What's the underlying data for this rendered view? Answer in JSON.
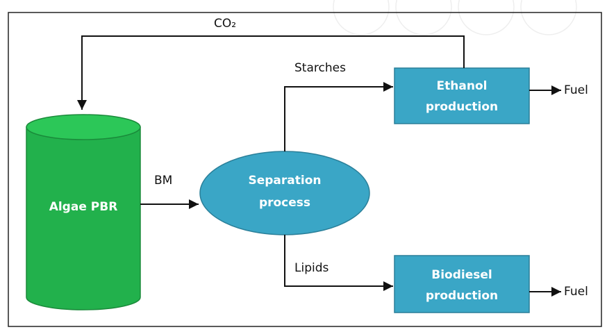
{
  "nodes": [
    {
      "label": [
        "Algae PBR"
      ]
    },
    {
      "label": [
        "Separation",
        "process"
      ]
    },
    {
      "label": [
        "Ethanol",
        "production"
      ]
    },
    {
      "label": [
        "Biodiesel",
        "production"
      ]
    }
  ],
  "edges": [
    {
      "label": "CO₂"
    },
    {
      "label": "BM"
    },
    {
      "label": "Starches"
    },
    {
      "label": "Lipids"
    },
    {
      "label": "Fuel"
    },
    {
      "label": "Fuel"
    }
  ]
}
